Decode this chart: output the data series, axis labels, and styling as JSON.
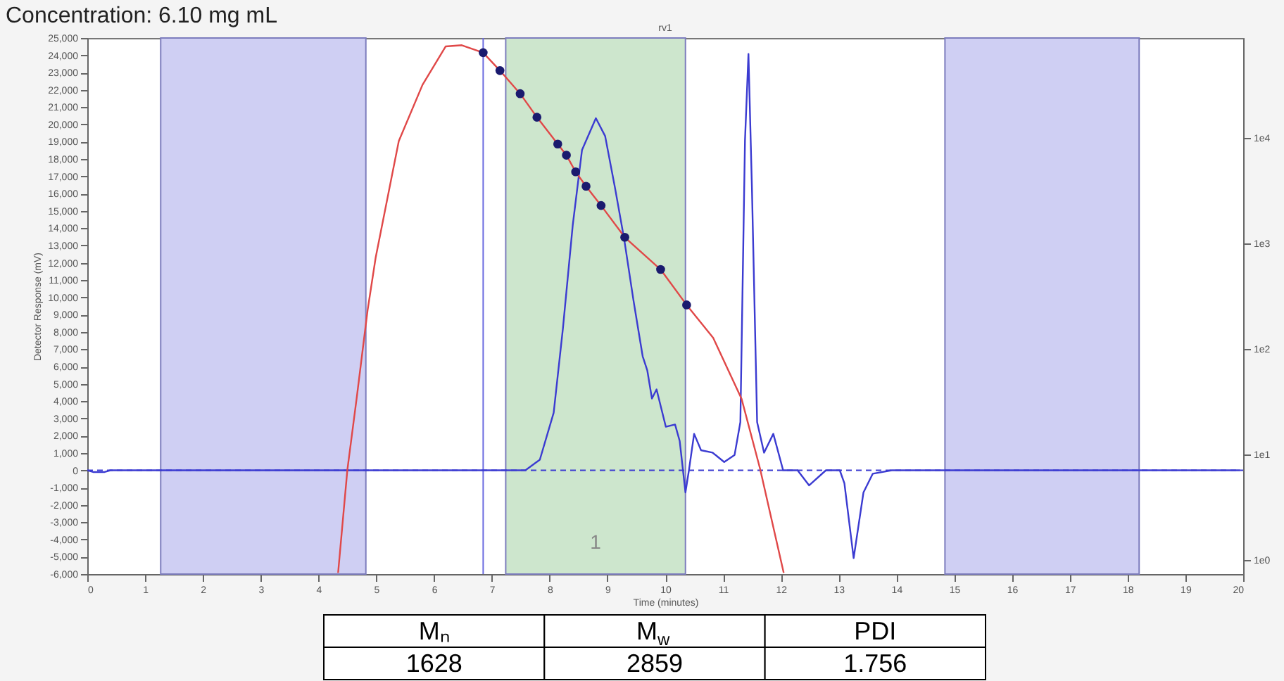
{
  "chart_data": {
    "type": "line",
    "title": "Concentration: 6.10 mg mL",
    "subtitle": "rv1",
    "xlabel": "Time (minutes)",
    "ylabel": "Detector Response (mV)",
    "xlim": [
      0,
      20
    ],
    "xticks": [
      0,
      1,
      2,
      3,
      4,
      5,
      6,
      7,
      8,
      9,
      10,
      11,
      12,
      13,
      14,
      15,
      16,
      17,
      18,
      19,
      20
    ],
    "ylim": [
      -6000,
      25000
    ],
    "yticks": [
      {
        "value": -6000,
        "label": "-6,000"
      },
      {
        "value": -5000,
        "label": "-5,000"
      },
      {
        "value": -4000,
        "label": "-4,000"
      },
      {
        "value": -3000,
        "label": "-3,000"
      },
      {
        "value": -2000,
        "label": "-2,000"
      },
      {
        "value": -1000,
        "label": "-1,000"
      },
      0,
      {
        "value": 1000,
        "label": "1,000"
      },
      {
        "value": 2000,
        "label": "2,000"
      },
      {
        "value": 3000,
        "label": "3,000"
      },
      {
        "value": 4000,
        "label": "4,000"
      },
      {
        "value": 5000,
        "label": "5,000"
      },
      {
        "value": 6000,
        "label": "6,000"
      },
      {
        "value": 7000,
        "label": "7,000"
      },
      {
        "value": 8000,
        "label": "8,000"
      },
      {
        "value": 9000,
        "label": "9,000"
      },
      {
        "value": 10000,
        "label": "10,000"
      },
      {
        "value": 11000,
        "label": "11,000"
      },
      {
        "value": 12000,
        "label": "12,000"
      },
      {
        "value": 13000,
        "label": "13,000"
      },
      {
        "value": 14000,
        "label": "14,000"
      },
      {
        "value": 15000,
        "label": "15,000"
      },
      {
        "value": 16000,
        "label": "16,000"
      },
      {
        "value": 17000,
        "label": "17,000"
      },
      {
        "value": 18000,
        "label": "18,000"
      },
      {
        "value": 19000,
        "label": "19,000"
      },
      {
        "value": 20000,
        "label": "20,000"
      },
      {
        "value": 21000,
        "label": "21,000"
      },
      {
        "value": 22000,
        "label": "22,000"
      },
      {
        "value": 23000,
        "label": "23,000"
      },
      {
        "value": 24000,
        "label": "24,000"
      },
      {
        "value": 25000,
        "label": "25,000"
      }
    ],
    "y2lim": [
      0.74,
      89000
    ],
    "y2ticks": [
      {
        "value": 1,
        "label": "1e0"
      },
      {
        "value": 10,
        "label": "1e1"
      },
      {
        "value": 100,
        "label": "1e2"
      },
      {
        "value": 1000,
        "label": "1e3"
      },
      {
        "value": 10000,
        "label": "1e4"
      }
    ],
    "log": "y2",
    "series": [
      {
        "type": "line",
        "color": "#3b3bd1",
        "x": [
          0,
          0.1,
          0.3,
          0.4,
          7.58,
          7.83,
          8.07,
          8.23,
          8.4,
          8.56,
          8.8,
          8.96,
          9.13,
          9.29,
          9.45,
          9.53,
          9.61,
          9.69,
          9.77,
          9.85,
          9.93,
          10.01,
          10.17,
          10.25,
          10.35,
          10.41,
          10.5,
          10.62,
          10.82,
          11.02,
          11.2,
          11.3,
          11.38,
          11.44,
          11.5,
          11.59,
          11.71,
          11.87,
          12.04,
          12.29,
          12.49,
          12.78,
          13.02,
          13.1,
          13.26,
          13.43,
          13.59,
          13.92,
          19.95
        ],
        "values": [
          0,
          -100,
          -100,
          0,
          0,
          610,
          3330,
          8210,
          14180,
          18520,
          20360,
          19330,
          16350,
          13360,
          9840,
          8210,
          6590,
          5770,
          4150,
          4680,
          3600,
          2520,
          2650,
          1700,
          -1280,
          0,
          2110,
          1160,
          1020,
          480,
          890,
          2790,
          19060,
          24080,
          16350,
          2790,
          1020,
          2110,
          0,
          0,
          -870,
          0,
          0,
          -750,
          -5080,
          -1280,
          -200,
          0,
          0
        ]
      },
      {
        "type": "line",
        "axis": "y2",
        "color": "#e04848",
        "x": [
          4.34,
          4.5,
          4.66,
          4.85,
          4.99,
          5.39,
          5.8,
          6.2,
          6.48,
          6.85,
          7.14,
          7.49,
          7.78,
          8.14,
          8.29,
          8.45,
          8.63,
          8.89,
          9.3,
          9.92,
          10.37,
          10.83,
          11.32,
          11.64,
          12.05
        ],
        "values": [
          0.76,
          7.2,
          34,
          234,
          740,
          9400,
          32000,
          74000,
          76000,
          64600,
          43700,
          26400,
          15800,
          8800,
          6900,
          4800,
          3500,
          2300,
          1150,
          570,
          263,
          128,
          34,
          7.4,
          0.76
        ]
      },
      {
        "type": "scatter",
        "axis": "y2",
        "marker": "circle",
        "color": "#1a1a6e",
        "x": [
          6.85,
          7.14,
          7.49,
          7.78,
          8.14,
          8.29,
          8.45,
          8.63,
          8.89,
          9.3,
          9.92,
          10.37
        ],
        "values": [
          64600,
          43700,
          26400,
          15800,
          8800,
          6900,
          4800,
          3500,
          2300,
          1150,
          570,
          263
        ]
      }
    ],
    "bands": [
      {
        "axis": "x",
        "from": 1.27,
        "to": 4.82,
        "color": "#cfcff3"
      },
      {
        "axis": "x",
        "from": 7.24,
        "to": 10.35,
        "color": "#cde6cd",
        "label": "1"
      },
      {
        "axis": "x",
        "from": 14.84,
        "to": 18.2,
        "color": "#cfcff3"
      }
    ],
    "ref_lines": [
      {
        "axis": "x",
        "value": 6.85,
        "color": "#6b6be0",
        "line_style": "solid"
      },
      {
        "axis": "y",
        "value": 0,
        "color": "#3b3bd1",
        "line_style": "dashed"
      }
    ],
    "annotations": [
      "Mₙ",
      "M$_{w}$",
      "PDI",
      "1628",
      "2859",
      "1.756"
    ]
  }
}
